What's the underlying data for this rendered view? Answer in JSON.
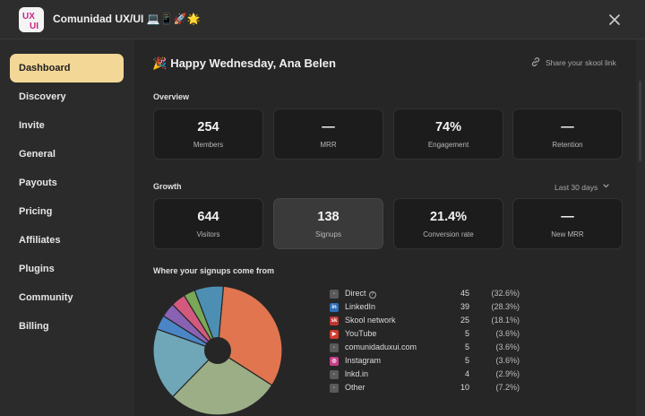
{
  "app": {
    "title": "Comunidad UX/UI 💻📱🚀🌟",
    "logo_text": "UX UI",
    "accent": "#f3d796"
  },
  "sidebar": {
    "items": [
      {
        "label": "Dashboard",
        "active": true
      },
      {
        "label": "Discovery"
      },
      {
        "label": "Invite"
      },
      {
        "label": "General"
      },
      {
        "label": "Payouts"
      },
      {
        "label": "Pricing"
      },
      {
        "label": "Affiliates"
      },
      {
        "label": "Plugins"
      },
      {
        "label": "Community"
      },
      {
        "label": "Billing"
      }
    ]
  },
  "header": {
    "greeting_emoji": "🎉",
    "greeting": "Happy Wednesday, Ana Belen",
    "share_link": "Share your skool link"
  },
  "overview": {
    "title": "Overview",
    "cards": [
      {
        "value": "254",
        "label": "Members"
      },
      {
        "value": "—",
        "label": "MRR"
      },
      {
        "value": "74%",
        "label": "Engagement"
      },
      {
        "value": "—",
        "label": "Retention"
      }
    ]
  },
  "growth": {
    "title": "Growth",
    "range": "Last 30 days",
    "cards": [
      {
        "value": "644",
        "label": "Visitors"
      },
      {
        "value": "138",
        "label": "Signups",
        "selected": true
      },
      {
        "value": "21.4%",
        "label": "Conversion rate"
      },
      {
        "value": "—",
        "label": "New MRR"
      }
    ]
  },
  "signups": {
    "title": "Where your signups come from",
    "sources": [
      {
        "name": "Direct",
        "count": "45",
        "pct": "(32.6%)",
        "icon": "globe-icon",
        "color": "#e07550",
        "info": true
      },
      {
        "name": "LinkedIn",
        "count": "39",
        "pct": "(28.3%)",
        "icon": "linkedin-icon",
        "color": "#9bae86"
      },
      {
        "name": "Skool network",
        "count": "25",
        "pct": "(18.1%)",
        "icon": "skool-icon",
        "color": "#6fa7b8"
      },
      {
        "name": "YouTube",
        "count": "5",
        "pct": "(3.6%)",
        "icon": "youtube-icon",
        "color": "#4a86c5"
      },
      {
        "name": "comunidaduxui.com",
        "count": "5",
        "pct": "(3.6%)",
        "icon": "globe-icon",
        "color": "#8a62b3"
      },
      {
        "name": "Instagram",
        "count": "5",
        "pct": "(3.6%)",
        "icon": "instagram-icon",
        "color": "#d45a7d"
      },
      {
        "name": "lnkd.in",
        "count": "4",
        "pct": "(2.9%)",
        "icon": "globe-icon",
        "color": "#78a858"
      },
      {
        "name": "Other",
        "count": "10",
        "pct": "(7.2%)",
        "icon": "globe-icon",
        "color": "#4d8fb3"
      }
    ]
  }
}
